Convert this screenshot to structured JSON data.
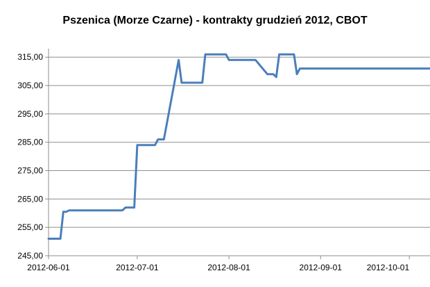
{
  "chart_data": {
    "type": "line",
    "title": "Pszenica (Morze Czarne) - kontrakty grudzień 2012, CBOT",
    "xlabel": "",
    "ylabel": "",
    "ylim": [
      245,
      318
    ],
    "y_ticks": [
      245,
      255,
      265,
      275,
      285,
      295,
      305,
      315
    ],
    "y_tick_labels": [
      "245,00",
      "255,00",
      "265,00",
      "275,00",
      "285,00",
      "295,00",
      "305,00",
      "315,00"
    ],
    "x_range": [
      "2012-06-01",
      "2012-10-08"
    ],
    "x_tick_labels": [
      "2012-06-01",
      "2012-07-01",
      "2012-08-01",
      "2012-09-01",
      "2012-10-01"
    ],
    "grid": "horizontal",
    "legend": "none",
    "line_color": "#4a7ebb",
    "series": [
      {
        "values": [
          [
            "2012-06-01",
            251
          ],
          [
            "2012-06-05",
            251
          ],
          [
            "2012-06-06",
            260.5
          ],
          [
            "2012-06-07",
            260.5
          ],
          [
            "2012-06-08",
            261
          ],
          [
            "2012-06-26",
            261
          ],
          [
            "2012-06-27",
            262
          ],
          [
            "2012-06-30",
            262
          ],
          [
            "2012-07-01",
            284
          ],
          [
            "2012-07-07",
            284
          ],
          [
            "2012-07-08",
            286
          ],
          [
            "2012-07-10",
            286
          ],
          [
            "2012-07-15",
            314
          ],
          [
            "2012-07-16",
            306
          ],
          [
            "2012-07-23",
            306
          ],
          [
            "2012-07-24",
            316
          ],
          [
            "2012-07-31",
            316
          ],
          [
            "2012-08-01",
            314
          ],
          [
            "2012-08-10",
            314
          ],
          [
            "2012-08-14",
            309
          ],
          [
            "2012-08-16",
            309
          ],
          [
            "2012-08-17",
            308
          ],
          [
            "2012-08-18",
            316
          ],
          [
            "2012-08-23",
            316
          ],
          [
            "2012-08-24",
            309
          ],
          [
            "2012-08-25",
            311
          ],
          [
            "2012-10-08",
            311
          ]
        ]
      }
    ]
  }
}
